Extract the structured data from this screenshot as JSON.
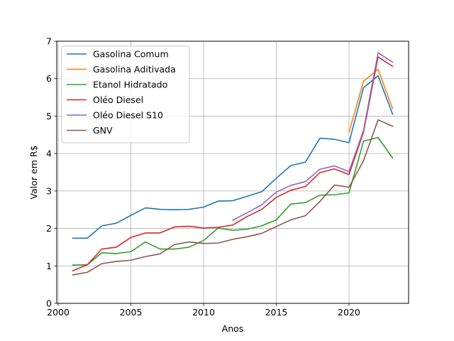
{
  "chart_data": {
    "type": "line",
    "xlabel": "Anos",
    "ylabel": "Valor em R$",
    "xlim": [
      1999.9,
      2024.1
    ],
    "ylim": [
      0,
      7
    ],
    "xticks": [
      "2000",
      "2005",
      "2010",
      "2015",
      "2020"
    ],
    "yticks": [
      "0",
      "1",
      "2",
      "3",
      "4",
      "5",
      "6",
      "7"
    ],
    "grid": true,
    "legend_position": "top-left",
    "series": [
      {
        "name": "Gasolina Comum",
        "color": "#1f77b4",
        "x": [
          2001,
          2002,
          2003,
          2004,
          2005,
          2006,
          2007,
          2008,
          2009,
          2010,
          2011,
          2012,
          2013,
          2014,
          2015,
          2016,
          2017,
          2018,
          2019,
          2020,
          2021,
          2022,
          2023
        ],
        "y": [
          1.74,
          1.74,
          2.07,
          2.14,
          2.35,
          2.55,
          2.51,
          2.5,
          2.51,
          2.57,
          2.73,
          2.74,
          2.86,
          2.98,
          3.34,
          3.68,
          3.77,
          4.41,
          4.38,
          4.29,
          5.76,
          6.08,
          5.05
        ]
      },
      {
        "name": "Gasolina Aditivada",
        "color": "#ff7f0e",
        "x": [
          2020,
          2021,
          2022,
          2023
        ],
        "y": [
          4.57,
          5.93,
          6.25,
          5.2
        ]
      },
      {
        "name": "Etanol Hidratado",
        "color": "#2ca02c",
        "x": [
          2001,
          2002,
          2003,
          2004,
          2005,
          2006,
          2007,
          2008,
          2009,
          2010,
          2011,
          2012,
          2013,
          2014,
          2015,
          2016,
          2017,
          2018,
          2019,
          2020,
          2021,
          2022,
          2023
        ],
        "y": [
          1.02,
          1.03,
          1.35,
          1.33,
          1.38,
          1.64,
          1.45,
          1.45,
          1.5,
          1.68,
          2.01,
          1.95,
          1.98,
          2.07,
          2.23,
          2.65,
          2.69,
          2.89,
          2.9,
          2.95,
          4.33,
          4.43,
          3.88
        ]
      },
      {
        "name": "Oléo Diesel",
        "color": "#d62728",
        "x": [
          2001,
          2002,
          2003,
          2004,
          2005,
          2006,
          2007,
          2008,
          2009,
          2010,
          2011,
          2012,
          2013,
          2014,
          2015,
          2016,
          2017,
          2018,
          2019,
          2020,
          2021,
          2022,
          2023
        ],
        "y": [
          0.87,
          1.03,
          1.45,
          1.5,
          1.76,
          1.88,
          1.88,
          2.04,
          2.06,
          2.01,
          2.03,
          2.09,
          2.32,
          2.51,
          2.83,
          3.02,
          3.12,
          3.49,
          3.59,
          3.44,
          4.57,
          6.58,
          6.33
        ]
      },
      {
        "name": "Oléo Diesel S10",
        "color": "#9467bd",
        "x": [
          2012,
          2013,
          2014,
          2015,
          2016,
          2017,
          2018,
          2019,
          2020,
          2021,
          2022,
          2023
        ],
        "y": [
          2.22,
          2.42,
          2.63,
          2.97,
          3.15,
          3.25,
          3.58,
          3.67,
          3.52,
          4.62,
          6.69,
          6.44
        ]
      },
      {
        "name": "GNV",
        "color": "#8c564b",
        "x": [
          2001,
          2002,
          2003,
          2004,
          2005,
          2006,
          2007,
          2008,
          2009,
          2010,
          2011,
          2012,
          2013,
          2014,
          2015,
          2016,
          2017,
          2018,
          2019,
          2020,
          2021,
          2022,
          2023
        ],
        "y": [
          0.76,
          0.83,
          1.06,
          1.12,
          1.15,
          1.25,
          1.32,
          1.57,
          1.64,
          1.6,
          1.61,
          1.71,
          1.78,
          1.87,
          2.05,
          2.23,
          2.34,
          2.72,
          3.16,
          3.1,
          3.81,
          4.9,
          4.73
        ]
      }
    ]
  }
}
